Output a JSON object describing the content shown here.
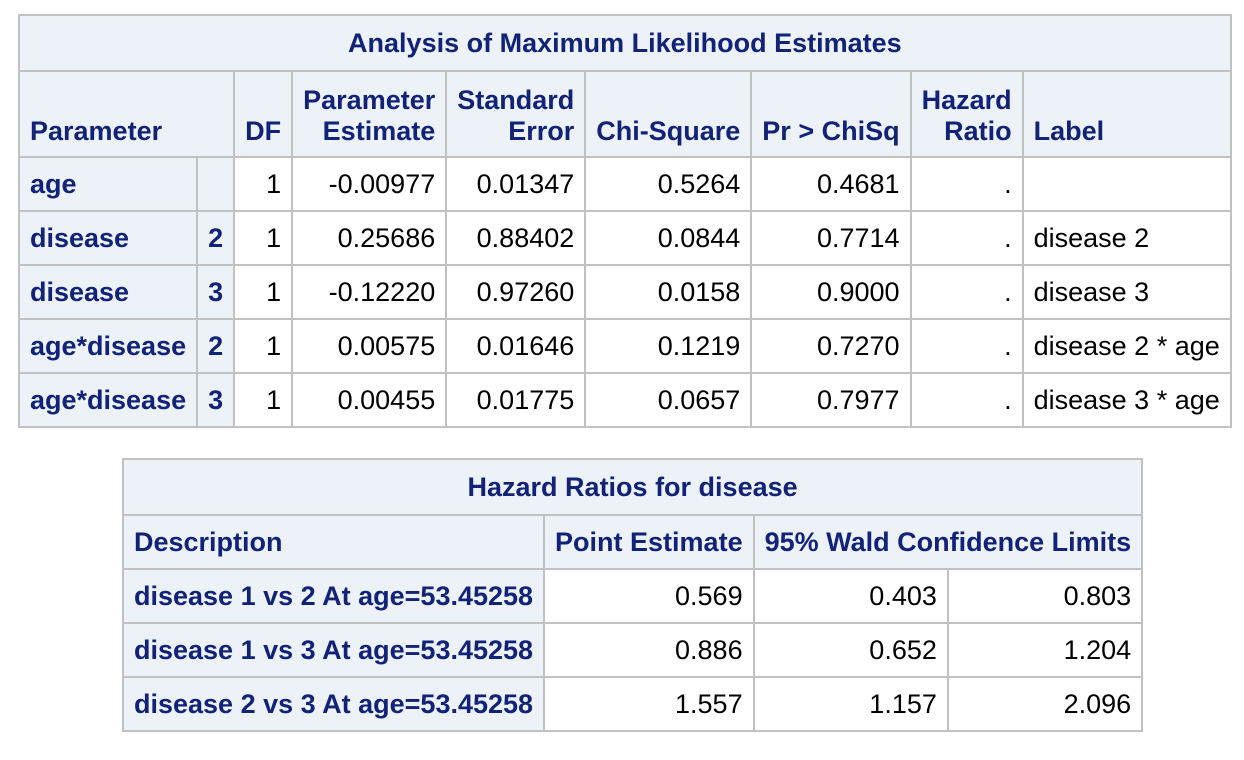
{
  "mle_table": {
    "title": "Analysis of Maximum Likelihood Estimates",
    "headers": {
      "parameter": "Parameter",
      "df": "DF",
      "estimate_l1": "Parameter",
      "estimate_l2": "Estimate",
      "stderr_l1": "Standard",
      "stderr_l2": "Error",
      "chisq": "Chi-Square",
      "pr": "Pr > ChiSq",
      "hr_l1": "Hazard",
      "hr_l2": "Ratio",
      "label": "Label"
    },
    "rows": [
      {
        "parameter": "age",
        "level": "",
        "df": "1",
        "estimate": "-0.00977",
        "stderr": "0.01347",
        "chisq": "0.5264",
        "pr": "0.4681",
        "hazard": ".",
        "label": ""
      },
      {
        "parameter": "disease",
        "level": "2",
        "df": "1",
        "estimate": "0.25686",
        "stderr": "0.88402",
        "chisq": "0.0844",
        "pr": "0.7714",
        "hazard": ".",
        "label": "disease 2"
      },
      {
        "parameter": "disease",
        "level": "3",
        "df": "1",
        "estimate": "-0.12220",
        "stderr": "0.97260",
        "chisq": "0.0158",
        "pr": "0.9000",
        "hazard": ".",
        "label": "disease 3"
      },
      {
        "parameter": "age*disease",
        "level": "2",
        "df": "1",
        "estimate": "0.00575",
        "stderr": "0.01646",
        "chisq": "0.1219",
        "pr": "0.7270",
        "hazard": ".",
        "label": "disease 2 * age"
      },
      {
        "parameter": "age*disease",
        "level": "3",
        "df": "1",
        "estimate": "0.00455",
        "stderr": "0.01775",
        "chisq": "0.0657",
        "pr": "0.7977",
        "hazard": ".",
        "label": "disease 3 * age"
      }
    ]
  },
  "hr_table": {
    "title": "Hazard Ratios for disease",
    "headers": {
      "description": "Description",
      "point": "Point Estimate",
      "wald": "95% Wald Confidence Limits"
    },
    "rows": [
      {
        "description": "disease 1 vs 2 At age=53.45258",
        "point": "0.569",
        "lower": "0.403",
        "upper": "0.803"
      },
      {
        "description": "disease 1 vs 3 At age=53.45258",
        "point": "0.886",
        "lower": "0.652",
        "upper": "1.204"
      },
      {
        "description": "disease 2 vs 3 At age=53.45258",
        "point": "1.557",
        "lower": "1.157",
        "upper": "2.096"
      }
    ]
  },
  "colors": {
    "header_bg": "#edf2f9",
    "header_text": "#112277",
    "border": "#c1c1c1",
    "cell_text": "#000000"
  }
}
